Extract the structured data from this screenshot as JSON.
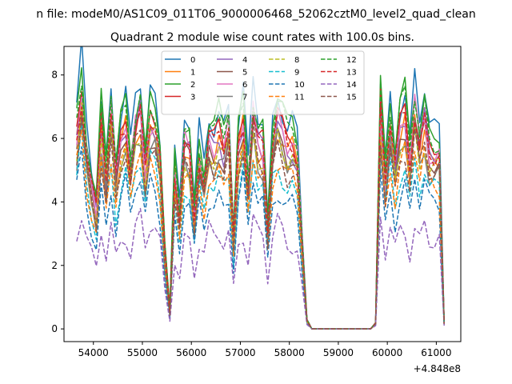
{
  "chart_data": {
    "type": "line",
    "suptitle": "n file: modeM0/AS1C09_011T06_9000006468_52062cztM0_level2_quad_clean",
    "title": "Quadrant 2 module wise count rates with 100.0s bins.",
    "xlabel": "",
    "ylabel": "",
    "x_offset_label": "+4.848e8",
    "xlim": [
      53400,
      61500
    ],
    "ylim": [
      -0.4,
      8.9
    ],
    "x_ticks": [
      54000,
      55000,
      56000,
      57000,
      58000,
      59000,
      60000,
      61000
    ],
    "x_tick_labels": [
      "54000",
      "55000",
      "56000",
      "57000",
      "58000",
      "59000",
      "60000",
      "61000"
    ],
    "y_ticks": [
      0,
      2,
      4,
      6,
      8
    ],
    "y_tick_labels": [
      "0",
      "2",
      "4",
      "6",
      "8"
    ],
    "grid": false,
    "legend": {
      "position": "top-center",
      "columns": 4
    },
    "x_segments": [
      {
        "start": 53660,
        "end": 58660,
        "step": 100
      },
      {
        "start": 58660,
        "end": 59760,
        "step": 100
      },
      {
        "start": 59760,
        "end": 61160,
        "step": 100
      }
    ],
    "base_profile_seg1": [
      6.8,
      8.4,
      6.2,
      5.0,
      4.1,
      7.1,
      5.3,
      7.5,
      5.2,
      6.6,
      7.2,
      5.6,
      7.1,
      7.6,
      5.6,
      7.3,
      7.1,
      5.9,
      2.6,
      0.6,
      5.5,
      3.9,
      6.5,
      6.3,
      3.9,
      6.1,
      5.1,
      6.6,
      6.3,
      6.8,
      6.3,
      7.0,
      3.1,
      6.4,
      7.3,
      5.0,
      7.6,
      6.5,
      6.4,
      3.4,
      6.5,
      7.4,
      6.9,
      6.3,
      6.5,
      6.0,
      3.0,
      0.3,
      0.0,
      0.0,
      0.0
    ],
    "base_profile_seg3": [
      0.2,
      7.7,
      5.2,
      7.2,
      5.6,
      7.0,
      7.4,
      5.8,
      7.7,
      6.4,
      7.4,
      6.2,
      6.1,
      6.2,
      0.2
    ],
    "series": [
      {
        "name": "0",
        "color": "#1f77b4",
        "dash": "solid",
        "scale": 1.02,
        "phase": 0.0
      },
      {
        "name": "1",
        "color": "#ff7f0e",
        "dash": "solid",
        "scale": 0.86,
        "phase": 0.9
      },
      {
        "name": "2",
        "color": "#2ca02c",
        "dash": "solid",
        "scale": 1.0,
        "phase": 1.7
      },
      {
        "name": "3",
        "color": "#d62728",
        "dash": "solid",
        "scale": 0.92,
        "phase": 2.3
      },
      {
        "name": "4",
        "color": "#9467bd",
        "dash": "solid",
        "scale": 0.88,
        "phase": 3.1
      },
      {
        "name": "5",
        "color": "#8c564b",
        "dash": "solid",
        "scale": 0.84,
        "phase": 3.9
      },
      {
        "name": "6",
        "color": "#e377c2",
        "dash": "solid",
        "scale": 0.9,
        "phase": 4.6
      },
      {
        "name": "7",
        "color": "#7f7f7f",
        "dash": "solid",
        "scale": 0.8,
        "phase": 5.2
      },
      {
        "name": "8",
        "color": "#bcbd22",
        "dash": "dashed",
        "scale": 0.82,
        "phase": 5.9
      },
      {
        "name": "9",
        "color": "#17becf",
        "dash": "dashed",
        "scale": 0.7,
        "phase": 6.5
      },
      {
        "name": "10",
        "color": "#1f77b4",
        "dash": "dashed",
        "scale": 0.62,
        "phase": 7.3
      },
      {
        "name": "11",
        "color": "#ff7f0e",
        "dash": "dashed",
        "scale": 0.74,
        "phase": 8.0
      },
      {
        "name": "12",
        "color": "#2ca02c",
        "dash": "dashed",
        "scale": 0.97,
        "phase": 8.8
      },
      {
        "name": "13",
        "color": "#d62728",
        "dash": "dashed",
        "scale": 0.9,
        "phase": 9.4
      },
      {
        "name": "14",
        "color": "#9467bd",
        "dash": "dashed",
        "scale": 0.44,
        "phase": 10.1
      },
      {
        "name": "15",
        "color": "#8c564b",
        "dash": "dashed",
        "scale": 0.78,
        "phase": 10.9
      }
    ]
  }
}
